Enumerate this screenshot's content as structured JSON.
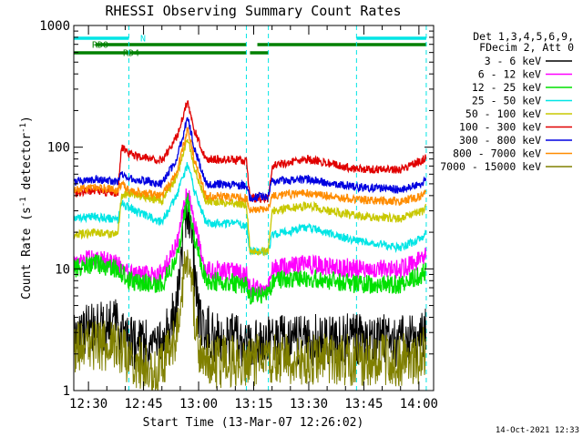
{
  "chart_data": {
    "type": "line",
    "title": "RHESSI Observing Summary Count Rates",
    "xlabel": "Start Time (13-Mar-07 12:26:02)",
    "ylabel": "Count Rate (s^-1 detector^-1)",
    "ylabel_prefix": "Count Rate (s",
    "ylabel_sup1": "-1",
    "ylabel_mid": " detector",
    "ylabel_sup2": "-1",
    "ylabel_suffix": ")",
    "yscale": "log",
    "ylim": [
      1,
      1000
    ],
    "xlim": [
      "12:26",
      "14:04"
    ],
    "x_tick_labels": [
      "12:30",
      "12:45",
      "13:00",
      "13:15",
      "13:30",
      "13:45",
      "14:00"
    ],
    "y_tick_labels": [
      "1",
      "10",
      "100",
      "1000"
    ],
    "legend_header": [
      "Det 1,3,4,5,6,9,",
      "FDecim 2, Att 0"
    ],
    "timestamp": "14-Oct-2021 12:33",
    "flags": [
      {
        "name": "N",
        "color": "#00e5e5",
        "spans": [
          [
            "12:26",
            "12:41"
          ],
          [
            "13:43",
            "14:02"
          ]
        ]
      },
      {
        "name": "RD0",
        "color": "#008000",
        "spans": [
          [
            "12:32",
            "13:13"
          ],
          [
            "13:16",
            "14:02"
          ]
        ]
      },
      {
        "name": "RD4",
        "color": "#008000",
        "spans": [
          [
            "12:26",
            "13:13"
          ],
          [
            "13:14",
            "13:19"
          ]
        ]
      }
    ],
    "event_lines": [
      "12:26",
      "12:41",
      "13:13",
      "13:19",
      "13:43",
      "14:02"
    ],
    "series": [
      {
        "name": "3 - 6 keV",
        "color": "#000000",
        "values": [
          [
            "12:26",
            3.0
          ],
          [
            "12:38",
            3.5
          ],
          [
            "12:41",
            2.5
          ],
          [
            "12:50",
            2.2
          ],
          [
            "12:54",
            5
          ],
          [
            "12:56",
            20
          ],
          [
            "12:57",
            33
          ],
          [
            "12:58",
            20
          ],
          [
            "13:00",
            4
          ],
          [
            "13:05",
            2.6
          ],
          [
            "13:13",
            2.6
          ],
          [
            "13:19",
            2.5
          ],
          [
            "13:30",
            2.6
          ],
          [
            "13:43",
            2.6
          ],
          [
            "14:00",
            2.6
          ],
          [
            "14:02",
            3.0
          ]
        ]
      },
      {
        "name": "6 - 12 keV",
        "color": "#ff00ff",
        "values": [
          [
            "12:26",
            12
          ],
          [
            "12:32",
            12
          ],
          [
            "12:38",
            11
          ],
          [
            "12:41",
            9
          ],
          [
            "12:50",
            9
          ],
          [
            "12:54",
            16
          ],
          [
            "12:57",
            45
          ],
          [
            "12:59",
            22
          ],
          [
            "13:02",
            10
          ],
          [
            "13:13",
            9
          ],
          [
            "13:14",
            7
          ],
          [
            "13:19",
            7
          ],
          [
            "13:20",
            10
          ],
          [
            "13:30",
            11
          ],
          [
            "13:43",
            10
          ],
          [
            "13:55",
            10
          ],
          [
            "14:01",
            12
          ],
          [
            "14:02",
            13
          ]
        ]
      },
      {
        "name": "12 - 25 keV",
        "color": "#00e000",
        "values": [
          [
            "12:26",
            10
          ],
          [
            "12:32",
            11
          ],
          [
            "12:38",
            10
          ],
          [
            "12:41",
            8
          ],
          [
            "12:50",
            7.5
          ],
          [
            "12:54",
            12
          ],
          [
            "12:57",
            38
          ],
          [
            "12:59",
            18
          ],
          [
            "13:02",
            8
          ],
          [
            "13:13",
            7.5
          ],
          [
            "13:14",
            6
          ],
          [
            "13:19",
            6
          ],
          [
            "13:20",
            8
          ],
          [
            "13:30",
            8.5
          ],
          [
            "13:43",
            7.5
          ],
          [
            "13:55",
            7.5
          ],
          [
            "14:01",
            9
          ],
          [
            "14:02",
            10
          ]
        ]
      },
      {
        "name": "25 - 50 keV",
        "color": "#00e5e5",
        "values": [
          [
            "12:26",
            26
          ],
          [
            "12:32",
            27
          ],
          [
            "12:38",
            25
          ],
          [
            "12:39",
            35
          ],
          [
            "12:41",
            32
          ],
          [
            "12:50",
            24
          ],
          [
            "12:54",
            40
          ],
          [
            "12:57",
            72
          ],
          [
            "12:59",
            42
          ],
          [
            "13:02",
            24
          ],
          [
            "13:13",
            23
          ],
          [
            "13:14",
            14
          ],
          [
            "13:19",
            14
          ],
          [
            "13:20",
            19
          ],
          [
            "13:30",
            22
          ],
          [
            "13:43",
            17
          ],
          [
            "13:55",
            15
          ],
          [
            "14:01",
            18
          ],
          [
            "14:02",
            20
          ]
        ]
      },
      {
        "name": "50 - 100 keV",
        "color": "#c8c800",
        "values": [
          [
            "12:26",
            19
          ],
          [
            "12:32",
            20
          ],
          [
            "12:38",
            19
          ],
          [
            "12:39",
            40
          ],
          [
            "12:41",
            42
          ],
          [
            "12:50",
            36
          ],
          [
            "12:54",
            55
          ],
          [
            "12:57",
            120
          ],
          [
            "12:59",
            65
          ],
          [
            "13:02",
            36
          ],
          [
            "13:13",
            34
          ],
          [
            "13:14",
            14
          ],
          [
            "13:19",
            14
          ],
          [
            "13:20",
            30
          ],
          [
            "13:30",
            33
          ],
          [
            "13:43",
            27
          ],
          [
            "13:55",
            26
          ],
          [
            "14:01",
            30
          ],
          [
            "14:02",
            32
          ]
        ]
      },
      {
        "name": "100 - 300 keV",
        "color": "#e00000",
        "values": [
          [
            "12:26",
            42
          ],
          [
            "12:32",
            44
          ],
          [
            "12:38",
            42
          ],
          [
            "12:39",
            100
          ],
          [
            "12:41",
            88
          ],
          [
            "12:50",
            78
          ],
          [
            "12:54",
            120
          ],
          [
            "12:57",
            240
          ],
          [
            "12:59",
            135
          ],
          [
            "13:02",
            80
          ],
          [
            "13:13",
            78
          ],
          [
            "13:14",
            38
          ],
          [
            "13:19",
            38
          ],
          [
            "13:20",
            70
          ],
          [
            "13:30",
            80
          ],
          [
            "13:43",
            66
          ],
          [
            "13:55",
            66
          ],
          [
            "14:01",
            78
          ],
          [
            "14:02",
            85
          ]
        ]
      },
      {
        "name": "300 - 800 keV",
        "color": "#0000e0",
        "values": [
          [
            "12:26",
            52
          ],
          [
            "12:32",
            55
          ],
          [
            "12:38",
            52
          ],
          [
            "12:39",
            62
          ],
          [
            "12:41",
            56
          ],
          [
            "12:50",
            50
          ],
          [
            "12:54",
            80
          ],
          [
            "12:57",
            175
          ],
          [
            "12:59",
            95
          ],
          [
            "13:02",
            50
          ],
          [
            "13:13",
            48
          ],
          [
            "13:14",
            38
          ],
          [
            "13:19",
            40
          ],
          [
            "13:20",
            52
          ],
          [
            "13:30",
            55
          ],
          [
            "13:43",
            47
          ],
          [
            "13:55",
            45
          ],
          [
            "14:01",
            50
          ],
          [
            "14:02",
            55
          ]
        ]
      },
      {
        "name": "800 - 7000 keV",
        "color": "#ff8c00",
        "values": [
          [
            "12:26",
            44
          ],
          [
            "12:32",
            47
          ],
          [
            "12:38",
            44
          ],
          [
            "12:39",
            50
          ],
          [
            "12:41",
            44
          ],
          [
            "12:50",
            40
          ],
          [
            "12:54",
            62
          ],
          [
            "12:57",
            140
          ],
          [
            "12:59",
            76
          ],
          [
            "13:02",
            40
          ],
          [
            "13:13",
            38
          ],
          [
            "13:14",
            30
          ],
          [
            "13:19",
            32
          ],
          [
            "13:20",
            40
          ],
          [
            "13:30",
            42
          ],
          [
            "13:43",
            37
          ],
          [
            "13:55",
            36
          ],
          [
            "14:01",
            40
          ],
          [
            "14:02",
            43
          ]
        ]
      },
      {
        "name": "7000 - 15000 keV",
        "color": "#808000",
        "values": [
          [
            "12:26",
            2.2
          ],
          [
            "12:38",
            2.4
          ],
          [
            "12:41",
            1.8
          ],
          [
            "12:50",
            1.5
          ],
          [
            "12:54",
            3
          ],
          [
            "12:56",
            9
          ],
          [
            "12:57",
            12
          ],
          [
            "12:58",
            8
          ],
          [
            "13:00",
            2
          ],
          [
            "13:05",
            1.7
          ],
          [
            "13:13",
            1.8
          ],
          [
            "13:19",
            1.8
          ],
          [
            "13:30",
            1.8
          ],
          [
            "13:43",
            1.8
          ],
          [
            "14:00",
            1.8
          ],
          [
            "14:02",
            2.2
          ]
        ]
      }
    ]
  }
}
